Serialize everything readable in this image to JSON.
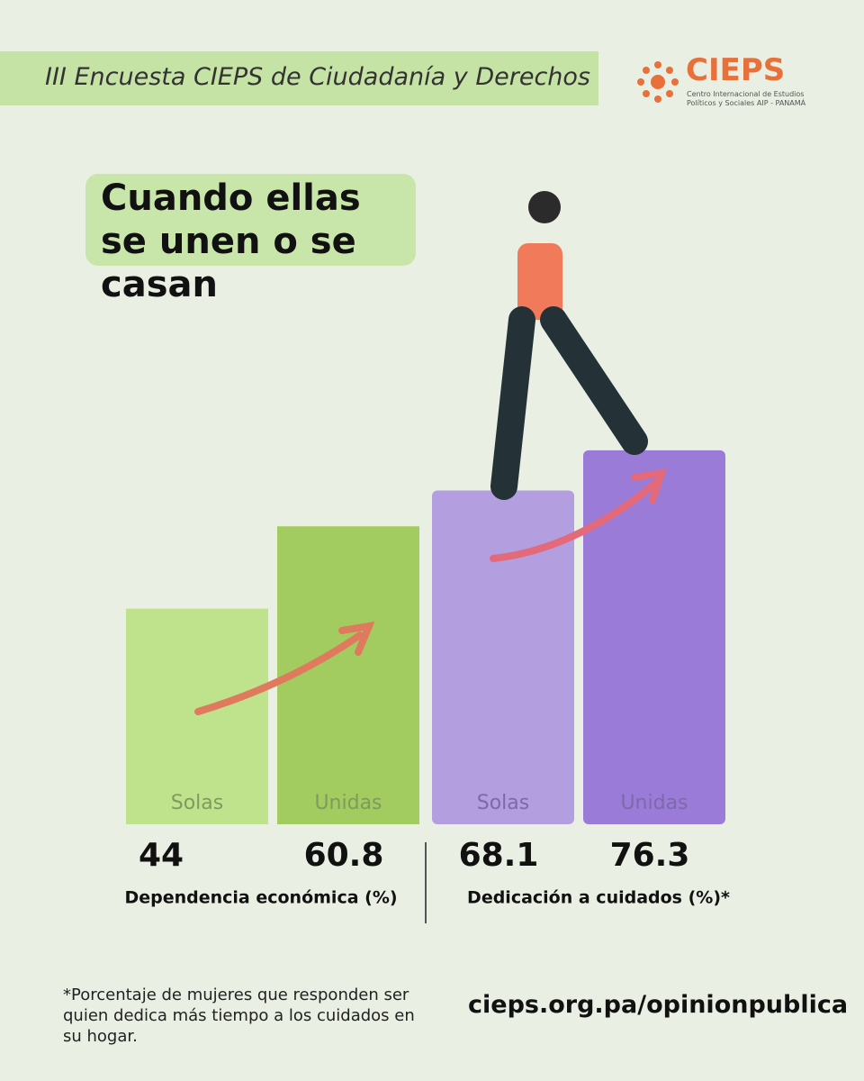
{
  "header": {
    "survey": "III Encuesta CIEPS de Ciudadanía y Derechos",
    "logo": "CIEPS",
    "logo_subtitle": "Centro Internacional de Estudios Políticos y Sociales AIP - PANAMÁ"
  },
  "chart_data": {
    "type": "bar",
    "title": "Cuando ellas se unen o se casan",
    "categories": [
      "Solas",
      "Unidas",
      "Solas",
      "Unidas"
    ],
    "values": [
      44,
      60.8,
      68.1,
      76.3
    ],
    "colors": [
      "#bfe38c",
      "#a2cc60",
      "#b39ee0",
      "#9b7bd8"
    ],
    "groups": [
      "Dependencia económica (%)",
      "Dedicación a cuidados (%)*"
    ]
  },
  "footnote": "*Porcentaje de mujeres que responden ser quien dedica más tiempo a los cuidados en su hogar.",
  "url": "cieps.org.pa/opinionpublica"
}
